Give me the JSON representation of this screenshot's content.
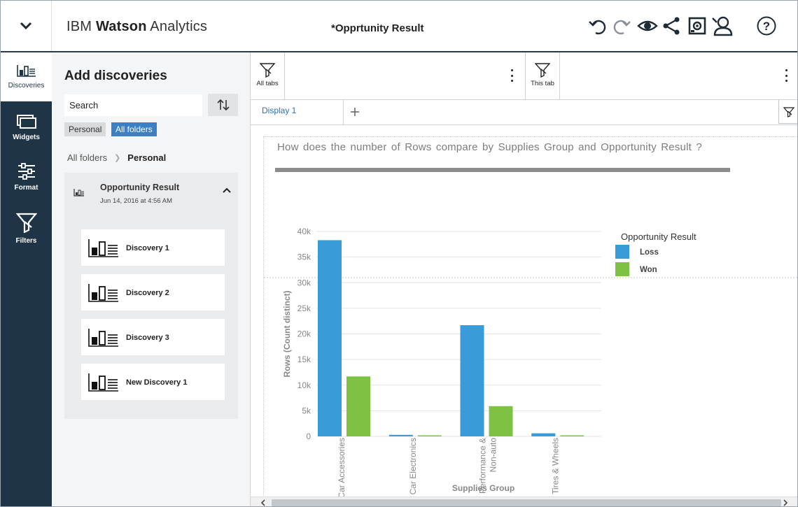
{
  "header": {
    "brand_prefix": "IBM",
    "brand_bold": "Watson",
    "brand_suffix": "Analytics",
    "document_title": "*Opprtunity Result",
    "icons": [
      "chevron-down-icon",
      "undo-icon",
      "redo-icon",
      "eye-icon",
      "share-icon",
      "screenshot-icon",
      "user-settings-icon",
      "help-icon"
    ]
  },
  "rail": {
    "items": [
      {
        "label": "Discoveries",
        "icon": "discoveries-icon",
        "active": true
      },
      {
        "label": "Widgets",
        "icon": "widgets-icon",
        "active": false
      },
      {
        "label": "Format",
        "icon": "sliders-icon",
        "active": false
      },
      {
        "label": "Filters",
        "icon": "filter-icon",
        "active": false
      }
    ]
  },
  "panel": {
    "title": "Add discoveries",
    "search_placeholder": "Search",
    "chips": {
      "personal": "Personal",
      "all": "All folders"
    },
    "breadcrumb": {
      "root": "All folders",
      "current": "Personal"
    },
    "folder": {
      "name": "Opportunity Result",
      "date": "Jun 14, 2016 at 4:56 AM",
      "items": [
        "Discovery 1",
        "Discovery 2",
        "Discovery 3",
        "New Discovery 1"
      ]
    }
  },
  "filters": {
    "all_tabs": "All tabs",
    "this_tab": "This tab"
  },
  "tabs": [
    {
      "label": "Display 1"
    }
  ],
  "chart": {
    "question": "How does the number of  Rows  compare by  Supplies Group  and  Opportunity Result  ?"
  },
  "chart_data": {
    "type": "bar",
    "title": "",
    "xlabel": "Supplies Group",
    "ylabel": "Rows (Count distinct)",
    "categories": [
      "Car Accessories",
      "Car Electronics",
      "Performance & Non-auto",
      "Tires & Wheels"
    ],
    "category_lines": [
      [
        "Car Accessories"
      ],
      [
        "Car Electronics"
      ],
      [
        "Performance &",
        "Non-auto"
      ],
      [
        "Tires & Wheels"
      ]
    ],
    "series": [
      {
        "name": "Loss",
        "color": "#3a9bd9",
        "values": [
          38300,
          300,
          21700,
          600
        ]
      },
      {
        "name": "Won",
        "color": "#7dc242",
        "values": [
          11700,
          150,
          5900,
          150
        ]
      }
    ],
    "ylim": [
      0,
      40000
    ],
    "yticks": [
      0,
      5000,
      10000,
      15000,
      20000,
      25000,
      30000,
      35000,
      40000
    ],
    "ytick_labels": [
      "0",
      "5k",
      "10k",
      "15k",
      "20k",
      "25k",
      "30k",
      "35k",
      "40k"
    ],
    "legend_title": "Opportunity Result",
    "legend_position": "top-right",
    "grid": true
  }
}
